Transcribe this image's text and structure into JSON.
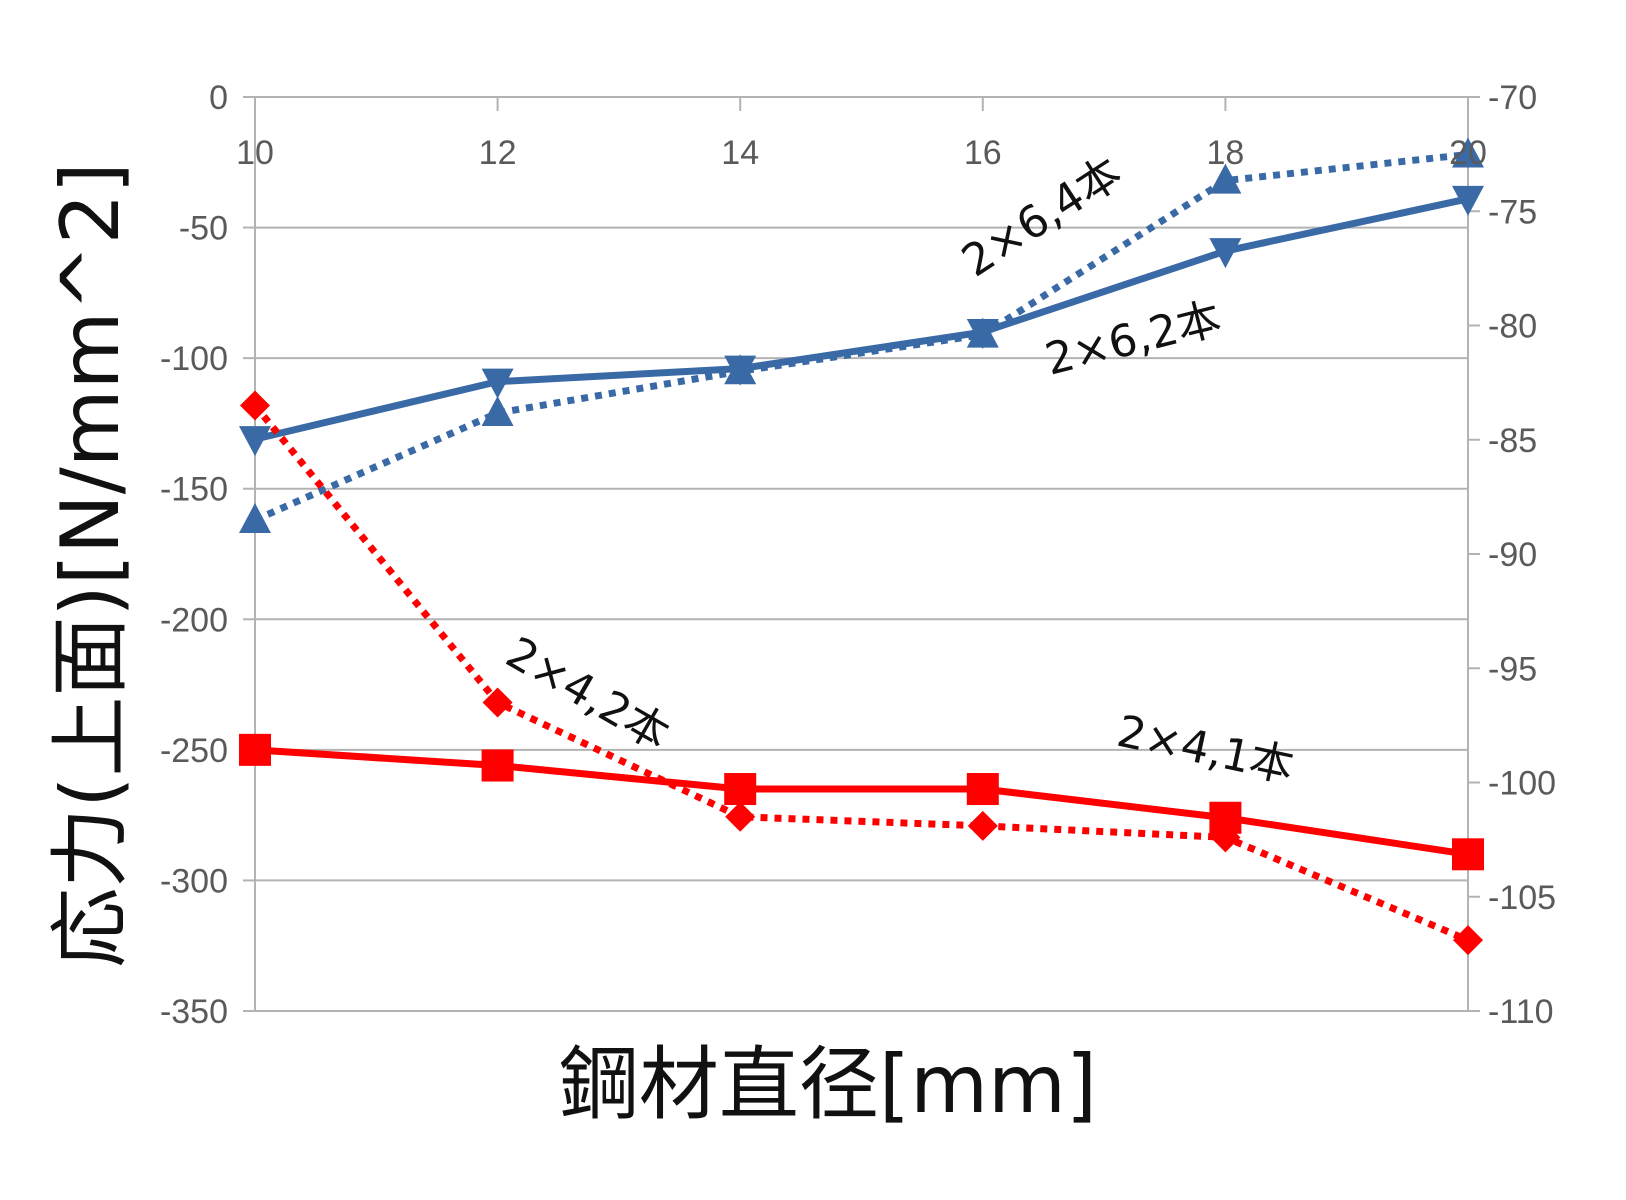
{
  "chart_data": {
    "type": "line",
    "title": "",
    "xlabel": "鋼材直径[mm]",
    "ylabel": "応力(上面)[N/mm^2]",
    "categories": [
      "10",
      "12",
      "14",
      "16",
      "18",
      "20"
    ],
    "y_left": {
      "range": [
        -350,
        0
      ],
      "ticks": [
        "0",
        "-50",
        "-100",
        "-150",
        "-200",
        "-250",
        "-300",
        "-350"
      ]
    },
    "y_right": {
      "range": [
        -110,
        -70
      ],
      "ticks": [
        "-70",
        "-75",
        "-80",
        "-85",
        "-90",
        "-95",
        "-100",
        "-105",
        "-110"
      ]
    },
    "grid": true,
    "legend": "none",
    "series": [
      {
        "label": "2×6,2本",
        "axis": "left",
        "color": "#3a6aa6",
        "style": "solid",
        "marker": "triangle-down",
        "values": [
          -131,
          -109,
          -104,
          -90,
          -59,
          -39
        ]
      },
      {
        "label": "2×6,4本",
        "axis": "left",
        "color": "#3a6aa6",
        "style": "dotted",
        "marker": "triangle-up",
        "values": [
          -162,
          -121,
          -105,
          -91,
          -32,
          -22
        ]
      },
      {
        "label": "2×4,1本",
        "axis": "left",
        "color": "#ff0000",
        "style": "solid",
        "marker": "square",
        "values": [
          -250,
          -256,
          -265,
          -265,
          -276,
          -290
        ]
      },
      {
        "label": "2×4,2本",
        "axis": "right",
        "color": "#ff0000",
        "style": "dotted",
        "marker": "diamond",
        "values": [
          -83.5,
          -96.5,
          -101.5,
          -101.9,
          -102.4,
          -106.9
        ]
      }
    ],
    "annotations": [
      "2×6,4本",
      "2×6,2本",
      "2×4,2本",
      "2×4,1本"
    ]
  }
}
